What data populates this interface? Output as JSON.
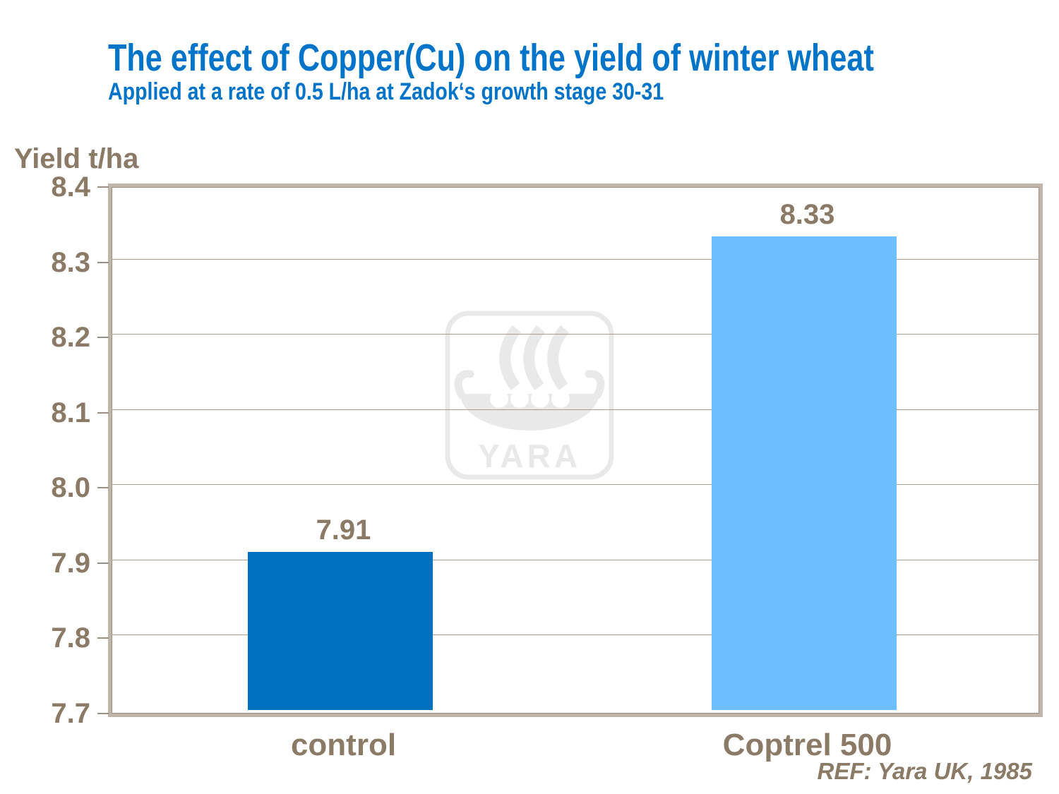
{
  "title": "The effect of Copper(Cu) on the yield of winter wheat",
  "subtitle": "Applied at a rate of 0.5 L/ha at Zadok‘s growth stage 30-31",
  "reference": "REF: Yara UK, 1985",
  "watermark_text": "YARA",
  "colors": {
    "title_blue": "#0074C9",
    "control_bar": "#0070C0",
    "coptrel_bar": "#6BBEFF",
    "axis_text": "#8A7A66",
    "gridline": "#A89C8E",
    "plot_border": "#BFB5A8",
    "watermark_gray": "#E9E9E9"
  },
  "chart_data": {
    "type": "bar",
    "title": "The effect of Copper(Cu) on the yield of winter wheat",
    "subtitle": "Applied at a rate of 0.5 L/ha at Zadok‘s growth stage 30-31",
    "categories": [
      "control",
      "Coptrel 500"
    ],
    "values": [
      7.91,
      8.33
    ],
    "bar_labels": [
      "7.91",
      "8.33"
    ],
    "bar_colors": [
      "#0070C0",
      "#6BBEFF"
    ],
    "xlabel": "",
    "ylabel": "Yield t/ha",
    "ylim": [
      7.7,
      8.4
    ],
    "yticks": [
      8.4,
      8.3,
      8.2,
      8.1,
      8.0,
      7.9,
      7.8,
      7.7
    ],
    "grid": true,
    "legend": false,
    "annotation": "REF: Yara UK, 1985"
  }
}
